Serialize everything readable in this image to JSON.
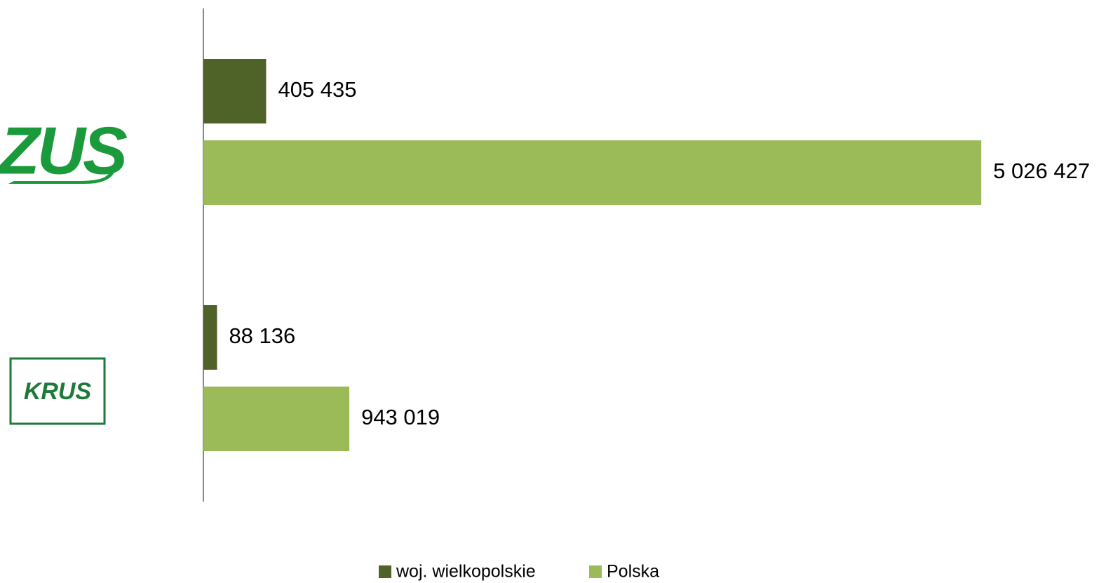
{
  "chart_data": {
    "type": "bar",
    "orientation": "horizontal",
    "categories": [
      "ZUS",
      "KRUS"
    ],
    "series": [
      {
        "name": "woj. wielkopolskie",
        "color": "#4f6228",
        "values": [
          405435,
          88136
        ],
        "value_labels": [
          "405 435",
          "88 136"
        ]
      },
      {
        "name": "Polska",
        "color": "#9bbb59",
        "values": [
          5026427,
          943019
        ],
        "value_labels": [
          "5 026 427",
          "943 019"
        ]
      }
    ],
    "xlim": [
      0,
      6000000
    ],
    "legend": "bottom"
  }
}
